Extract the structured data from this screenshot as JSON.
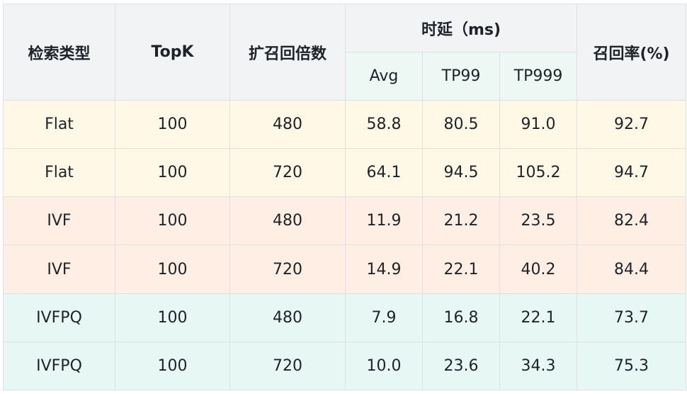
{
  "table": {
    "headers": {
      "type": "检索类型",
      "topk": "TopK",
      "expand": "扩召回倍数",
      "latency_group": "时延（ms)",
      "avg": "Avg",
      "tp99": "TP99",
      "tp999": "TP999",
      "recall": "召回率(%)"
    },
    "rows": [
      {
        "type": "Flat",
        "topk": "100",
        "expand": "480",
        "avg": "58.8",
        "tp99": "80.5",
        "tp999": "91.0",
        "recall": "92.7"
      },
      {
        "type": "Flat",
        "topk": "100",
        "expand": "720",
        "avg": "64.1",
        "tp99": "94.5",
        "tp999": "105.2",
        "recall": "94.7"
      },
      {
        "type": "IVF",
        "topk": "100",
        "expand": "480",
        "avg": "11.9",
        "tp99": "21.2",
        "tp999": "23.5",
        "recall": "82.4"
      },
      {
        "type": "IVF",
        "topk": "100",
        "expand": "720",
        "avg": "14.9",
        "tp99": "22.1",
        "tp999": "40.2",
        "recall": "84.4"
      },
      {
        "type": "IVFPQ",
        "topk": "100",
        "expand": "480",
        "avg": "7.9",
        "tp99": "16.8",
        "tp999": "22.1",
        "recall": "73.7"
      },
      {
        "type": "IVFPQ",
        "topk": "100",
        "expand": "720",
        "avg": "10.0",
        "tp99": "23.6",
        "tp999": "34.3",
        "recall": "75.3"
      }
    ]
  },
  "colors": {
    "header_bg": "#f2f3f5",
    "subheader_bg": "#edf8f5",
    "flat_bg": "#fff8e6",
    "ivf_bg": "#ffeee3",
    "ivfpq_bg": "#e7f7f4",
    "border": "#dee0e3"
  }
}
